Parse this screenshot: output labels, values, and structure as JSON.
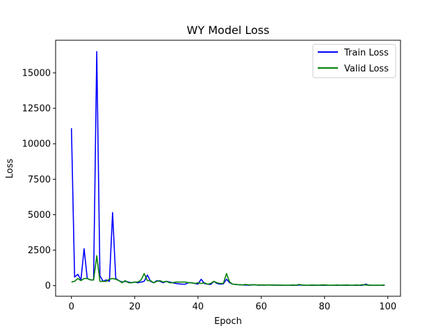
{
  "chart_data": {
    "type": "line",
    "title": "WY Model Loss",
    "xlabel": "Epoch",
    "ylabel": "Loss",
    "xlim": [
      -5,
      104
    ],
    "ylim": [
      -750,
      17300
    ],
    "xticks": [
      0,
      20,
      40,
      60,
      80,
      100
    ],
    "yticks": [
      0,
      2500,
      5000,
      7500,
      10000,
      12500,
      15000
    ],
    "xtick_labels": [
      "0",
      "20",
      "40",
      "60",
      "80",
      "100"
    ],
    "ytick_labels": [
      "0",
      "2500",
      "5000",
      "7500",
      "10000",
      "12500",
      "15000"
    ],
    "grid": false,
    "legend_position": "top-right",
    "series": [
      {
        "name": "Train Loss",
        "color": "#0000ff",
        "x": [
          0,
          1,
          2,
          3,
          4,
          5,
          6,
          7,
          8,
          9,
          10,
          11,
          12,
          13,
          14,
          15,
          16,
          17,
          18,
          19,
          20,
          21,
          22,
          23,
          24,
          25,
          26,
          27,
          28,
          29,
          30,
          31,
          32,
          33,
          34,
          35,
          36,
          37,
          38,
          39,
          40,
          41,
          42,
          43,
          44,
          45,
          46,
          47,
          48,
          49,
          50,
          51,
          52,
          53,
          54,
          55,
          56,
          57,
          58,
          59,
          60,
          61,
          62,
          63,
          64,
          65,
          66,
          67,
          68,
          69,
          70,
          71,
          72,
          73,
          74,
          75,
          76,
          77,
          78,
          79,
          80,
          81,
          82,
          83,
          84,
          85,
          86,
          87,
          88,
          89,
          90,
          91,
          92,
          93,
          94,
          95,
          96,
          97,
          98,
          99
        ],
        "values": [
          11100,
          600,
          800,
          400,
          2600,
          500,
          400,
          400,
          16500,
          700,
          300,
          400,
          300,
          5150,
          500,
          350,
          250,
          300,
          250,
          200,
          250,
          200,
          250,
          300,
          750,
          300,
          200,
          350,
          300,
          200,
          300,
          250,
          200,
          150,
          120,
          100,
          100,
          200,
          200,
          150,
          100,
          450,
          150,
          100,
          80,
          300,
          150,
          100,
          120,
          450,
          200,
          100,
          80,
          60,
          50,
          40,
          30,
          50,
          60,
          30,
          40,
          30,
          50,
          40,
          30,
          30,
          30,
          20,
          20,
          20,
          30,
          20,
          40,
          30,
          20,
          20,
          20,
          30,
          20,
          20,
          30,
          20,
          20,
          20,
          20,
          20,
          30,
          20,
          20,
          20,
          20,
          20,
          20,
          100,
          30,
          20,
          20,
          20,
          20,
          20
        ]
      },
      {
        "name": "Valid Loss",
        "color": "#008000",
        "x": [
          0,
          1,
          2,
          3,
          4,
          5,
          6,
          7,
          8,
          9,
          10,
          11,
          12,
          13,
          14,
          15,
          16,
          17,
          18,
          19,
          20,
          21,
          22,
          23,
          24,
          25,
          26,
          27,
          28,
          29,
          30,
          31,
          32,
          33,
          34,
          35,
          36,
          37,
          38,
          39,
          40,
          41,
          42,
          43,
          44,
          45,
          46,
          47,
          48,
          49,
          50,
          51,
          52,
          53,
          54,
          55,
          56,
          57,
          58,
          59,
          60,
          61,
          62,
          63,
          64,
          65,
          66,
          67,
          68,
          69,
          70,
          71,
          72,
          73,
          74,
          75,
          76,
          77,
          78,
          79,
          80,
          81,
          82,
          83,
          84,
          85,
          86,
          87,
          88,
          89,
          90,
          91,
          92,
          93,
          94,
          95,
          96,
          97,
          98,
          99
        ],
        "values": [
          250,
          300,
          500,
          350,
          500,
          500,
          400,
          400,
          2100,
          300,
          300,
          300,
          450,
          500,
          450,
          350,
          200,
          350,
          200,
          200,
          250,
          250,
          400,
          850,
          350,
          350,
          200,
          300,
          350,
          250,
          300,
          200,
          200,
          250,
          250,
          250,
          250,
          200,
          200,
          150,
          200,
          150,
          200,
          100,
          150,
          300,
          200,
          150,
          150,
          850,
          250,
          100,
          80,
          60,
          50,
          80,
          50,
          60,
          50,
          40,
          50,
          40,
          40,
          50,
          40,
          30,
          30,
          30,
          30,
          30,
          40,
          30,
          80,
          30,
          30,
          30,
          40,
          30,
          30,
          40,
          50,
          30,
          30,
          30,
          40,
          30,
          30,
          40,
          30,
          30,
          40,
          30,
          60,
          40,
          30,
          30,
          30,
          30,
          30,
          40
        ]
      }
    ]
  }
}
